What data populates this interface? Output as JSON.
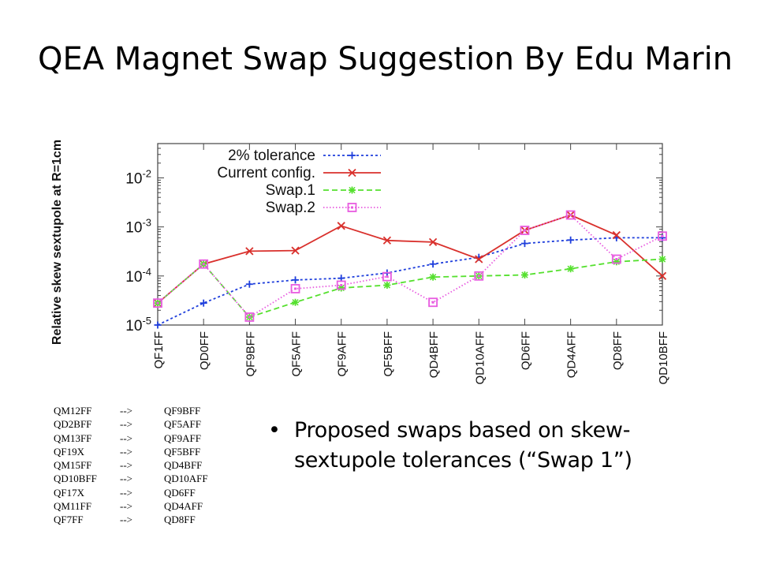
{
  "title": "QEA Magnet Swap Suggestion By Edu Marin",
  "chart_data": {
    "type": "line",
    "ylabel": "Relative skew sextupole at R=1cm",
    "xlabel": "",
    "yscale": "log",
    "ylim": [
      1e-05,
      0.05
    ],
    "yticks": [
      {
        "value": 1e-05,
        "mant": "10",
        "exp": "-5"
      },
      {
        "value": 0.0001,
        "mant": "10",
        "exp": "-4"
      },
      {
        "value": 0.001,
        "mant": "10",
        "exp": "-3"
      },
      {
        "value": 0.01,
        "mant": "10",
        "exp": "-2"
      }
    ],
    "categories": [
      "QF1FF",
      "QD0FF",
      "QF9BFF",
      "QF5AFF",
      "QF9AFF",
      "QF5BFF",
      "QD4BFF",
      "QD10AFF",
      "QD6FF",
      "QD4AFF",
      "QD8FF",
      "QD10BFF"
    ],
    "legend_position": "top-left",
    "grid": false,
    "series": [
      {
        "name": "2% tolerance",
        "color": "#1f3fdc",
        "dash": "3,3",
        "marker": "plus",
        "values": [
          1e-05,
          2.8e-05,
          6.8e-05,
          8.3e-05,
          9e-05,
          0.000115,
          0.000175,
          0.00024,
          0.00046,
          0.00054,
          0.0006,
          0.0006
        ]
      },
      {
        "name": "Current config.",
        "color": "#d9302c",
        "dash": "",
        "marker": "x",
        "values": [
          2.8e-05,
          0.000175,
          0.00032,
          0.00033,
          0.00105,
          0.00053,
          0.00049,
          0.00022,
          0.00085,
          0.00175,
          0.00068,
          0.0001
        ]
      },
      {
        "name": "Swap.1",
        "color": "#55e02e",
        "dash": "7,4",
        "marker": "star",
        "values": [
          2.8e-05,
          0.000175,
          1.45e-05,
          2.9e-05,
          5.7e-05,
          6.5e-05,
          9.5e-05,
          0.0001,
          0.000105,
          0.00014,
          0.000195,
          0.00022
        ]
      },
      {
        "name": "Swap.2",
        "color": "#e85ce0",
        "dash": "1.5,2.5",
        "marker": "square",
        "values": [
          2.8e-05,
          0.000175,
          1.45e-05,
          5.5e-05,
          6.5e-05,
          9.7e-05,
          2.9e-05,
          0.0001,
          0.00085,
          0.00175,
          0.00022,
          0.00065
        ]
      }
    ]
  },
  "swaps": [
    {
      "from": "QM12FF",
      "arrow": "-->",
      "to": "QF9BFF"
    },
    {
      "from": "QD2BFF",
      "arrow": "-->",
      "to": "QF5AFF"
    },
    {
      "from": "QM13FF",
      "arrow": "-->",
      "to": "QF9AFF"
    },
    {
      "from": "QF19X",
      "arrow": "-->",
      "to": "QF5BFF"
    },
    {
      "from": "QM15FF",
      "arrow": "-->",
      "to": "QD4BFF"
    },
    {
      "from": "QD10BFF",
      "arrow": "-->",
      "to": "QD10AFF"
    },
    {
      "from": "QF17X",
      "arrow": "-->",
      "to": "QD6FF"
    },
    {
      "from": "QM11FF",
      "arrow": "-->",
      "to": "QD4AFF"
    },
    {
      "from": "QF7FF",
      "arrow": "-->",
      "to": "QD8FF"
    }
  ],
  "bullet": {
    "text": "Proposed swaps based on skew-sextupole tolerances (“Swap 1”)"
  }
}
